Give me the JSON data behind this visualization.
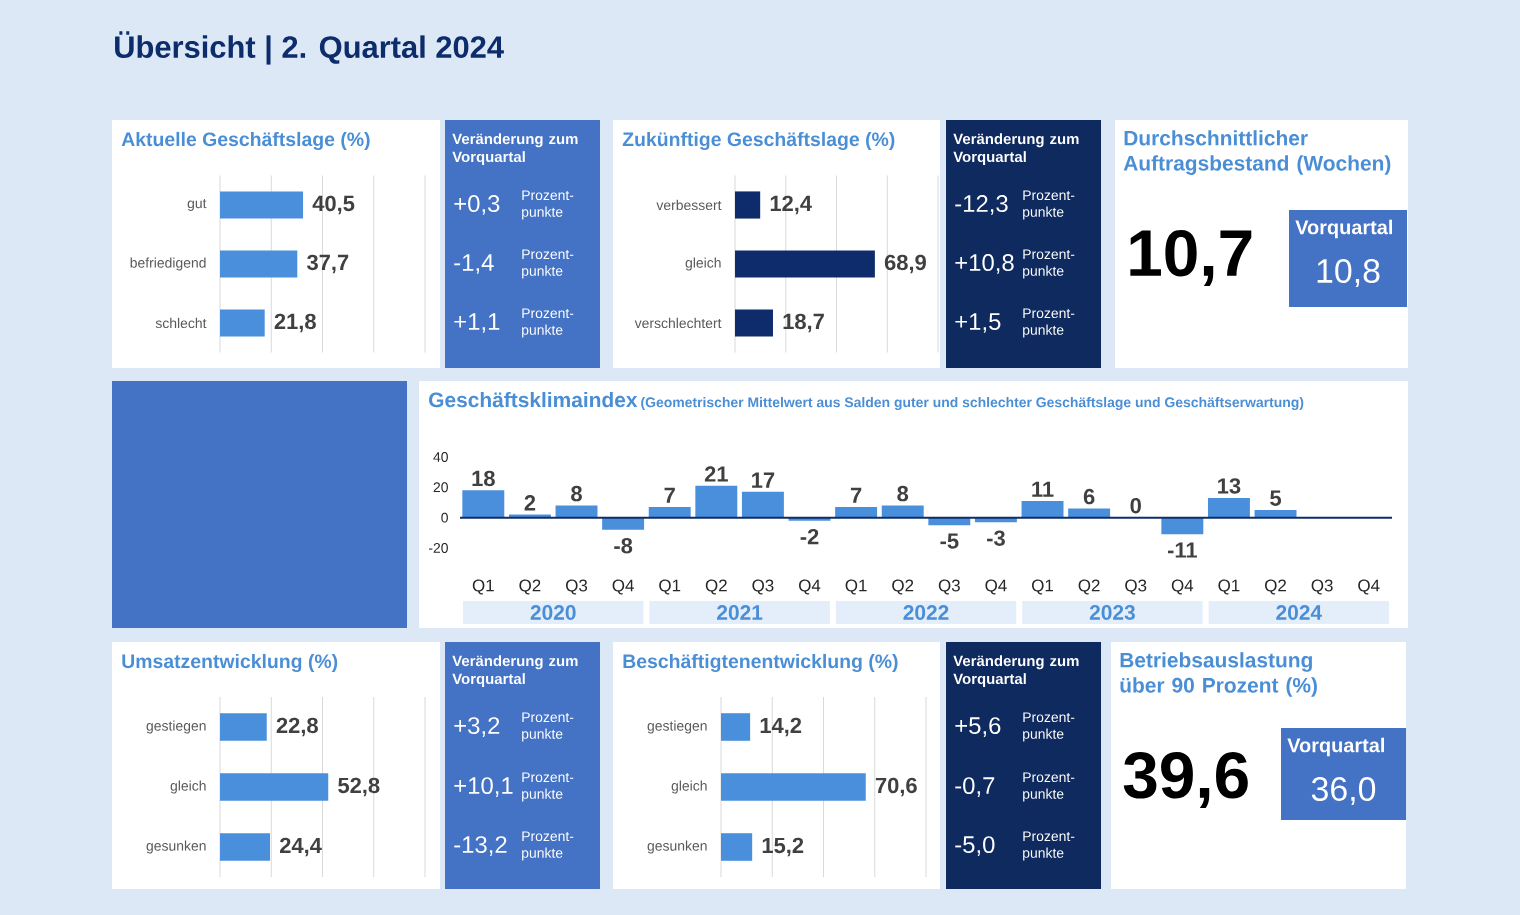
{
  "chart_data": [
    {
      "type": "other",
      "title": "Übersicht | 2. Quartal 2024"
    },
    {
      "type": "bar",
      "orientation": "horizontal",
      "title": "Aktuelle Geschäftslage (%)",
      "categories": [
        "gut",
        "befriedigend",
        "schlecht"
      ],
      "values": [
        40.5,
        37.7,
        21.8
      ],
      "value_labels": [
        "40,5",
        "37,7",
        "21,8"
      ],
      "color": "#4a8fdc",
      "xlim": [
        0,
        100
      ],
      "xticks": [
        {
          "value": 0,
          "label": null
        },
        {
          "value": 25,
          "label": null
        },
        {
          "value": 50,
          "label": null
        },
        {
          "value": 75,
          "label": null
        },
        {
          "value": 100,
          "label": null
        }
      ],
      "grid": "x"
    },
    {
      "type": "other",
      "title": "Veränderung zum Vorquartal",
      "annotations": [
        "+0,3",
        "Prozent-punkte",
        "-1,4",
        "Prozent-punkte",
        "+1,1",
        "Prozent-punkte"
      ]
    },
    {
      "type": "bar",
      "orientation": "horizontal",
      "title": "Zukünftige Geschäftslage (%)",
      "categories": [
        "verbessert",
        "gleich",
        "verschlechtert"
      ],
      "values": [
        12.4,
        68.9,
        18.7
      ],
      "value_labels": [
        "12,4",
        "68,9",
        "18,7"
      ],
      "color": "#0e2c6b",
      "xlim": [
        0,
        100
      ],
      "xticks": [
        {
          "value": 0,
          "label": null
        },
        {
          "value": 25,
          "label": null
        },
        {
          "value": 50,
          "label": null
        },
        {
          "value": 75,
          "label": null
        },
        {
          "value": 100,
          "label": null
        }
      ],
      "grid": "x"
    },
    {
      "type": "other",
      "title": "Veränderung zum Vorquartal",
      "annotations": [
        "-12,3",
        "Prozent-punkte",
        "+10,8",
        "Prozent-punkte",
        "+1,5",
        "Prozent-punkte"
      ]
    },
    {
      "type": "other",
      "title": "Durchschnittlicher Auftragsbestand (Wochen)",
      "annotations": [
        "10,7",
        "Vorquartal",
        "10,8"
      ]
    },
    {
      "type": "bar",
      "title": "Geschäftsklimaindex",
      "subtitle": "(Geometrischer Mittelwert aus Salden guter und schlechter Geschäftslage und Geschäftserwartung)",
      "categories": [
        "Q1",
        "Q2",
        "Q3",
        "Q4",
        "Q1",
        "Q2",
        "Q3",
        "Q4",
        "Q1",
        "Q2",
        "Q3",
        "Q4",
        "Q1",
        "Q2",
        "Q3",
        "Q4",
        "Q1",
        "Q2",
        "Q3",
        "Q4"
      ],
      "values": [
        18,
        2,
        8,
        -8,
        7,
        21,
        17,
        -2,
        7,
        8,
        -5,
        -3,
        11,
        6,
        0,
        -11,
        13,
        5,
        null,
        null
      ],
      "color": "#4a8fdc",
      "ylim": [
        -20,
        40
      ],
      "yticks": [
        -20,
        0,
        20,
        40
      ],
      "data_labels": true,
      "ref_lines": [
        {
          "axis": "y",
          "value": 0,
          "color": "#0f2d69"
        }
      ],
      "annotations": [
        "2020",
        "2021",
        "2022",
        "2023",
        "2024"
      ]
    },
    {
      "type": "bar",
      "orientation": "horizontal",
      "title": "Umsatzentwicklung (%)",
      "categories": [
        "gestiegen",
        "gleich",
        "gesunken"
      ],
      "values": [
        22.8,
        52.8,
        24.4
      ],
      "value_labels": [
        "22,8",
        "52,8",
        "24,4"
      ],
      "color": "#4a8fdc",
      "xlim": [
        0,
        100
      ],
      "xticks": [
        {
          "value": 0,
          "label": null
        },
        {
          "value": 25,
          "label": null
        },
        {
          "value": 50,
          "label": null
        },
        {
          "value": 75,
          "label": null
        },
        {
          "value": 100,
          "label": null
        }
      ],
      "grid": "x"
    },
    {
      "type": "other",
      "title": "Veränderung zum Vorquartal",
      "annotations": [
        "+3,2",
        "Prozent-punkte",
        "+10,1",
        "Prozent-punkte",
        "-13,2",
        "Prozent-punkte"
      ]
    },
    {
      "type": "bar",
      "orientation": "horizontal",
      "title": "Beschäftigtenentwicklung (%)",
      "categories": [
        "gestiegen",
        "gleich",
        "gesunken"
      ],
      "values": [
        14.2,
        70.6,
        15.2
      ],
      "value_labels": [
        "14,2",
        "70,6",
        "15,2"
      ],
      "color": "#4a8fdc",
      "xlim": [
        0,
        100
      ],
      "xticks": [
        {
          "value": 0,
          "label": null
        },
        {
          "value": 25,
          "label": null
        },
        {
          "value": 50,
          "label": null
        },
        {
          "value": 75,
          "label": null
        },
        {
          "value": 100,
          "label": null
        }
      ],
      "grid": "x"
    },
    {
      "type": "other",
      "title": "Veränderung zum Vorquartal",
      "annotations": [
        "+5,6",
        "Prozent-punkte",
        "-0,7",
        "Prozent-punkte",
        "-5,0",
        "Prozent-punkte"
      ]
    },
    {
      "type": "other",
      "title": "Betriebsauslastung über 90 Prozent (%)",
      "annotations": [
        "39,6",
        "Vorquartal",
        "36,0"
      ]
    }
  ]
}
